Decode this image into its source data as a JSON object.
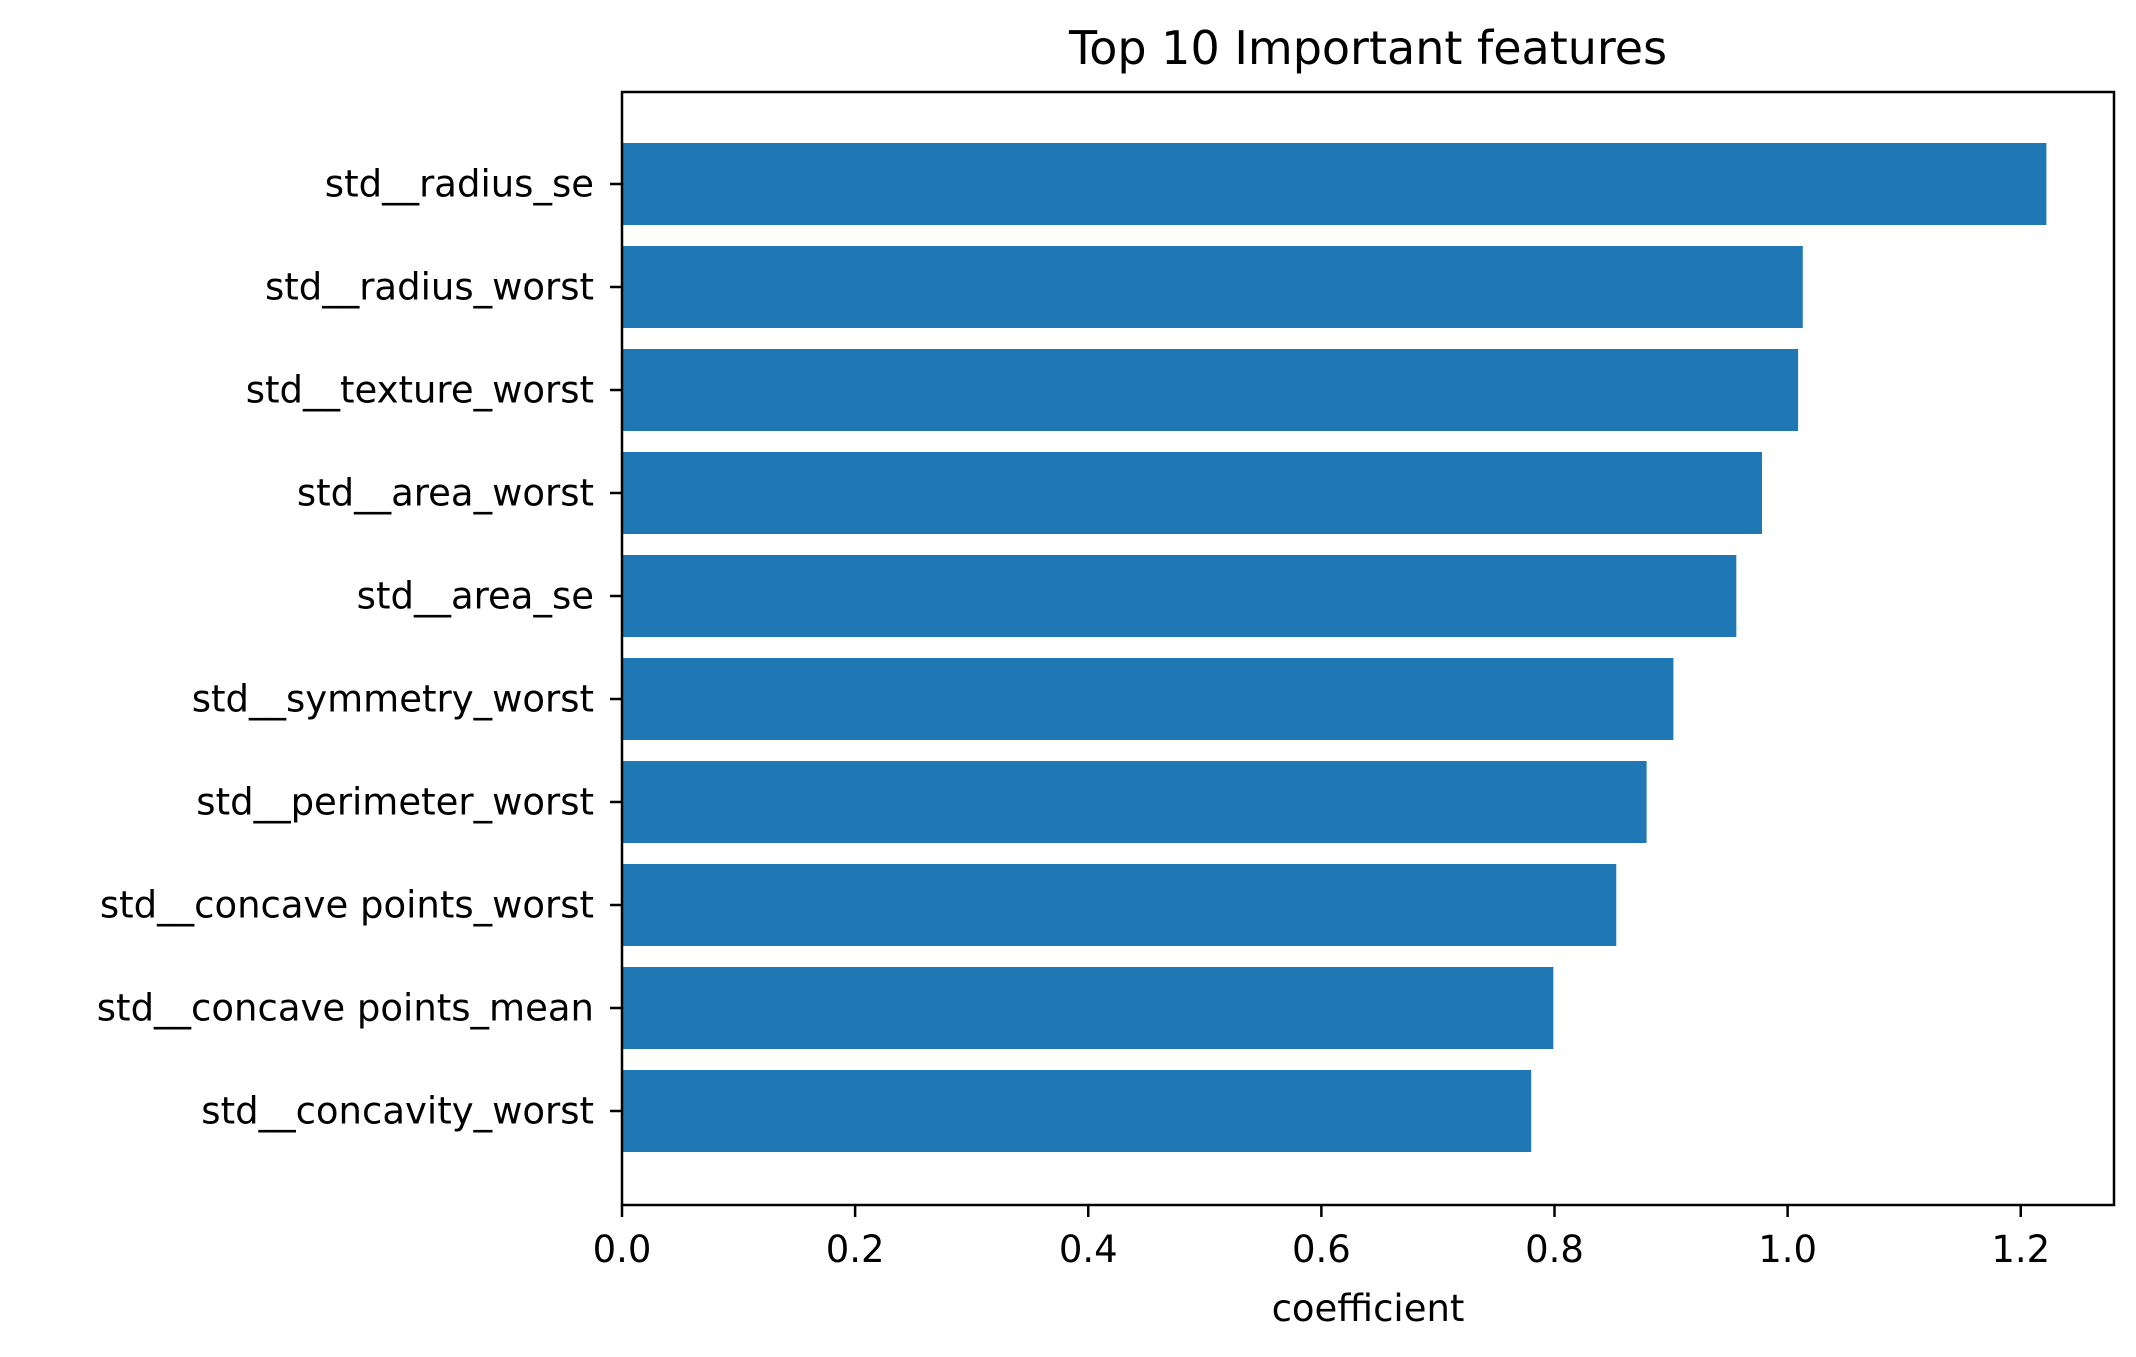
{
  "chart_data": {
    "type": "bar",
    "orientation": "horizontal",
    "title": "Top 10 Important features",
    "xlabel": "coefficient",
    "ylabel": "",
    "xlim": [
      0,
      1.28
    ],
    "xticks": [
      0.0,
      0.2,
      0.4,
      0.6,
      0.8,
      1.0,
      1.2
    ],
    "xtick_labels": [
      "0.0",
      "0.2",
      "0.4",
      "0.6",
      "0.8",
      "1.0",
      "1.2"
    ],
    "categories": [
      "std__radius_se",
      "std__radius_worst",
      "std__texture_worst",
      "std__area_worst",
      "std__area_se",
      "std__symmetry_worst",
      "std__perimeter_worst",
      "std__concave points_worst",
      "std__concave points_mean",
      "std__concavity_worst"
    ],
    "values": [
      1.222,
      1.013,
      1.009,
      0.978,
      0.956,
      0.902,
      0.879,
      0.853,
      0.799,
      0.78
    ],
    "bar_color": "#1f77b4",
    "grid": false,
    "legend": "none"
  }
}
